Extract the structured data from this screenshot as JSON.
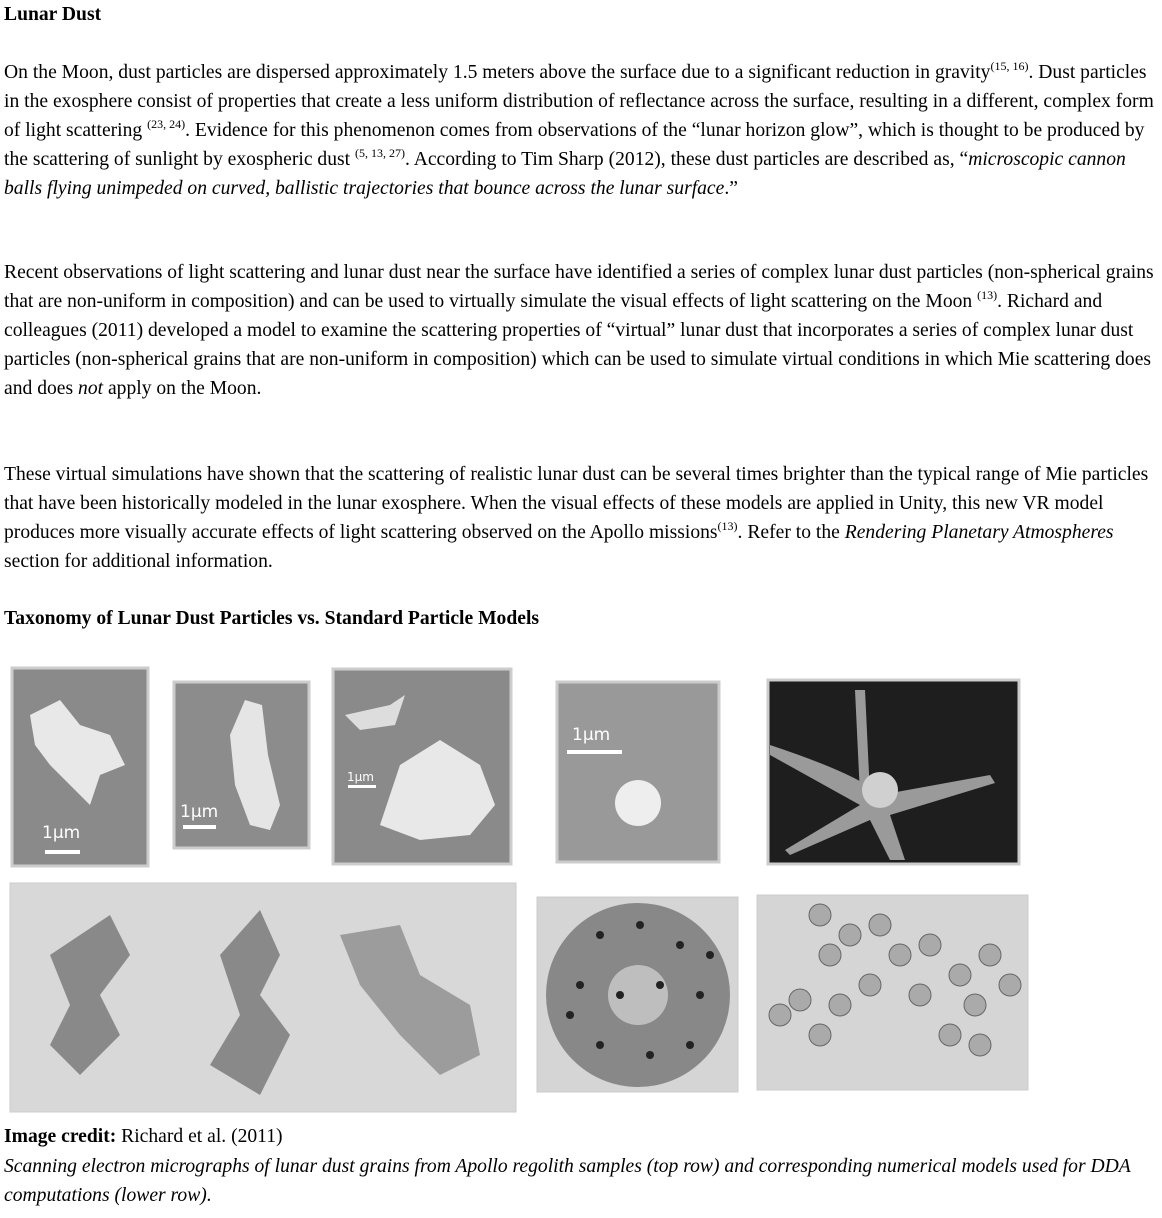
{
  "title": "Lunar Dust",
  "paragraphs": [
    [
      {
        "text": "On the Moon, dust particles are dispersed approximately 1.5 meters above the surface due to a significant reduction in gravity"
      },
      {
        "sup": "(15, 16)"
      },
      {
        "text": ". Dust particles in the exosphere consist of properties that create a less uniform distribution of reflectance across the surface, resulting in a different, complex form of light scattering "
      },
      {
        "sup": "(23, 24)"
      },
      {
        "text": ". Evidence for this phenomenon comes from observations of the “lunar horizon glow”, which is thought to be produced by the scattering of sunlight by exospheric dust "
      },
      {
        "sup": "(5, 13, 27)"
      },
      {
        "text": ". According to Tim Sharp (2012), these dust particles are described as, “"
      },
      {
        "em": "microscopic cannon balls flying unimpeded on curved, ballistic trajectories that bounce across the lunar surface"
      },
      {
        "text": ".”"
      }
    ],
    [
      {
        "text": "Recent observations of light scattering and lunar dust near the surface have identified a series of complex lunar dust particles (non-spherical grains that are non-uniform in composition) and can be used to virtually simulate the visual effects of light scattering on the Moon "
      },
      {
        "sup": "(13)"
      },
      {
        "text": ".  Richard and colleagues (2011) developed a model to examine the scattering properties of “virtual” lunar dust that incorporates a series of complex lunar dust particles (non-spherical grains that are non-uniform in composition) which can be used to simulate virtual conditions in which Mie scattering does and does "
      },
      {
        "em": "not"
      },
      {
        "text": " apply on the Moon."
      }
    ],
    [
      {
        "text": "These virtual simulations have shown that the scattering of realistic lunar dust can be several times brighter than the typical range of Mie particles that have been historically modeled in the lunar exosphere. When the visual effects of these models are applied in Unity, this new VR model produces more visually accurate effects of light scattering observed on the Apollo missions"
      },
      {
        "sup": "(13)"
      },
      {
        "text": ". Refer to the "
      },
      {
        "em": "Rendering Planetary Atmospheres"
      },
      {
        "text": " section for additional information."
      }
    ]
  ],
  "figure_heading": "Taxonomy of Lunar Dust Particles vs. Standard Particle Models",
  "image_labels": [
    "1µm",
    "1µm",
    "1µm",
    "1µm"
  ],
  "credit": [
    {
      "b": "Image credit:"
    },
    {
      "text": " Richard et al. (2011)"
    }
  ],
  "caption": "Scanning electron micrographs of lunar dust grains from Apollo regolith samples (top row) and corresponding numerical models used for DDA computations (lower row)."
}
